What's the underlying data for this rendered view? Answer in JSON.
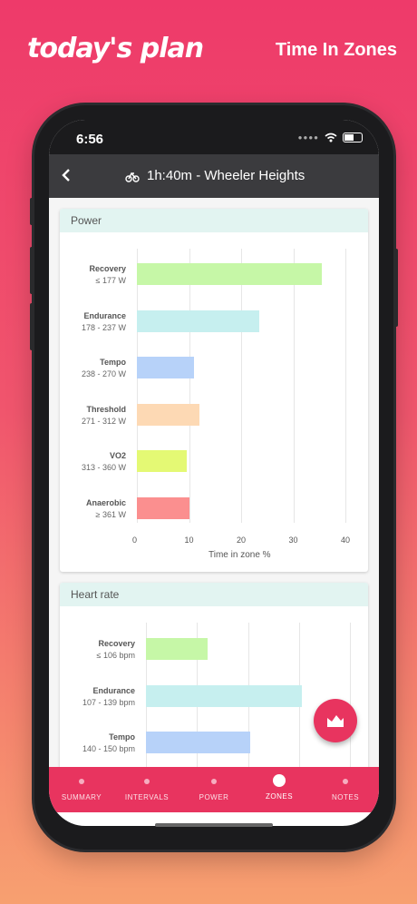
{
  "promo": {
    "brand": "today's plan",
    "title": "Time In Zones"
  },
  "status": {
    "time": "6:56"
  },
  "appbar": {
    "title": "1h:40m - Wheeler Heights"
  },
  "power": {
    "header": "Power",
    "zones": [
      {
        "name": "Recovery",
        "range": "≤ 177 W",
        "value": 35.5,
        "color": "#c6f7a7"
      },
      {
        "name": "Endurance",
        "range": "178 - 237 W",
        "value": 23.5,
        "color": "#c6efef"
      },
      {
        "name": "Tempo",
        "range": "238 - 270 W",
        "value": 11,
        "color": "#b7d2f9"
      },
      {
        "name": "Threshold",
        "range": "271 - 312 W",
        "value": 12,
        "color": "#fdd9b4"
      },
      {
        "name": "VO2",
        "range": "313 - 360 W",
        "value": 9.5,
        "color": "#e4f974"
      },
      {
        "name": "Anaerobic",
        "range": "≥ 361 W",
        "value": 10,
        "color": "#fb8f8f"
      }
    ],
    "ticks": [
      "0",
      "10",
      "20",
      "30",
      "40"
    ],
    "xlabel": "Time in zone %"
  },
  "heart": {
    "header": "Heart rate",
    "zones": [
      {
        "name": "Recovery",
        "range": "≤ 106 bpm",
        "value": 12,
        "color": "#c6f7a7"
      },
      {
        "name": "Endurance",
        "range": "107 - 139 bpm",
        "value": 30.5,
        "color": "#c6efef"
      },
      {
        "name": "Tempo",
        "range": "140 - 150 bpm",
        "value": 20.5,
        "color": "#b7d2f9"
      }
    ]
  },
  "tabs": [
    {
      "label": "SUMMARY"
    },
    {
      "label": "INTERVALS"
    },
    {
      "label": "POWER"
    },
    {
      "label": "ZONES"
    },
    {
      "label": "NOTES"
    }
  ],
  "accent": "#e8345f"
}
